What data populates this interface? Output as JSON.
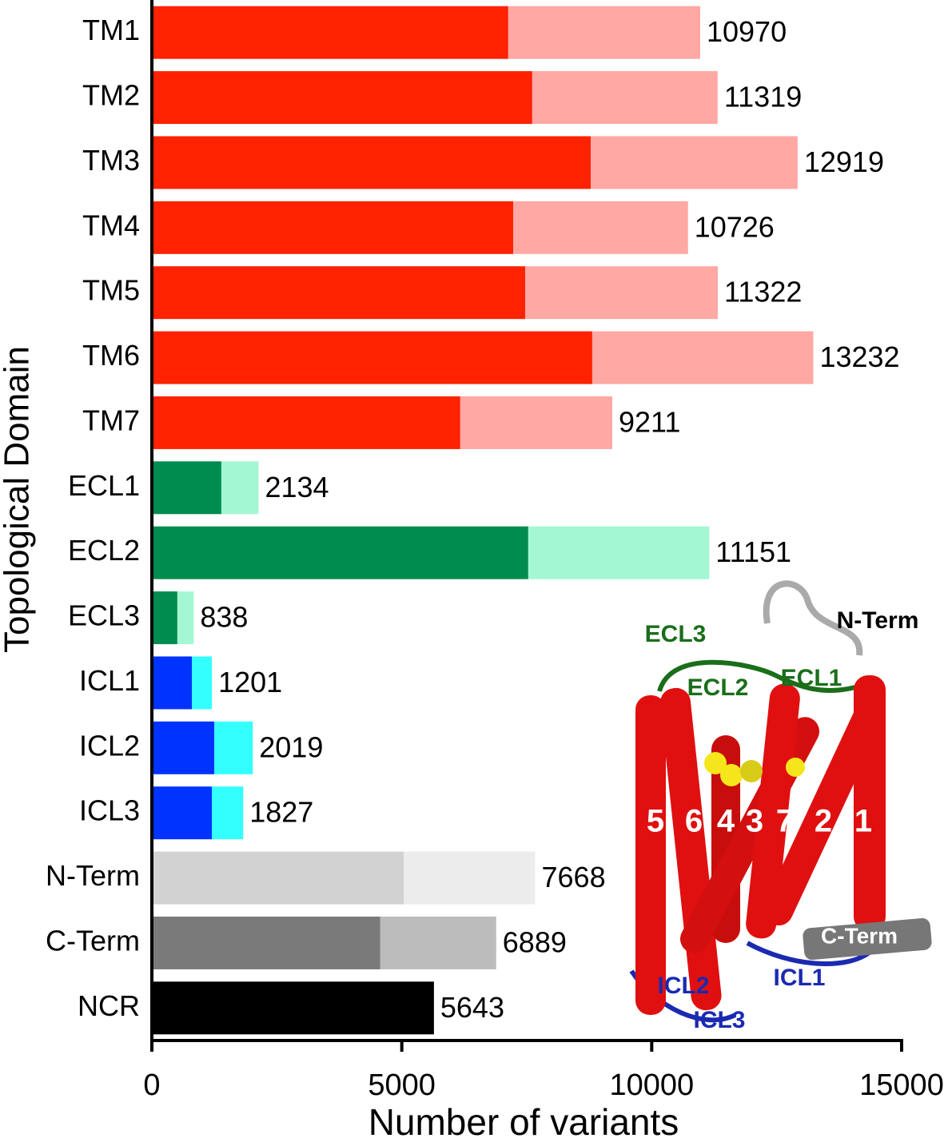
{
  "chart_data": {
    "type": "stacked-barh",
    "x_label": "Number of variants",
    "y_label": "Topological Domain",
    "categories": [
      "TM1",
      "TM2",
      "TM3",
      "TM4",
      "TM5",
      "TM6",
      "TM7",
      "ECL1",
      "ECL2",
      "ECL3",
      "ICL1",
      "ICL2",
      "ICL3",
      "N-Term",
      "C-Term",
      "NCR"
    ],
    "series": [
      {
        "values": [
          7130,
          7610,
          8780,
          7230,
          7470,
          8810,
          6170,
          1390,
          7530,
          510,
          800,
          1250,
          1200,
          5040,
          4570,
          5643
        ],
        "colors": [
          "#ff2200",
          "#ff2200",
          "#ff2200",
          "#ff2200",
          "#ff2200",
          "#ff2200",
          "#ff2200",
          "#008c4e",
          "#008c4e",
          "#008c4e",
          "#0033ff",
          "#0033ff",
          "#0033ff",
          "#d2d2d2",
          "#7a7a7a",
          "#000000"
        ]
      },
      {
        "values": [
          3840,
          3709,
          4139,
          3496,
          3852,
          4422,
          3041,
          744,
          3621,
          328,
          401,
          769,
          627,
          2628,
          2319,
          0
        ],
        "colors": [
          "#ffa8a4",
          "#ffa8a4",
          "#ffa8a4",
          "#ffa8a4",
          "#ffa8a4",
          "#ffa8a4",
          "#ffa8a4",
          "#a4f7d3",
          "#a4f7d3",
          "#a4f7d3",
          "#33ffff",
          "#33ffff",
          "#33ffff",
          "#ececec",
          "#bcbcbc",
          "#000000"
        ]
      }
    ],
    "totals": [
      10970,
      11319,
      12919,
      10726,
      11322,
      13232,
      9211,
      2134,
      11151,
      838,
      1201,
      2019,
      1827,
      7668,
      6889,
      5643
    ],
    "xlim": [
      0,
      15000
    ],
    "xticks": [
      0,
      5000,
      10000,
      15000
    ],
    "grid": false
  },
  "inset": {
    "labels": [
      "N-Term",
      "ECL3",
      "ECL2",
      "ECL1",
      "5",
      "6",
      "4",
      "3",
      "7",
      "2",
      "1",
      "C-Term",
      "ICL2",
      "ICL1",
      "ICL3"
    ]
  }
}
